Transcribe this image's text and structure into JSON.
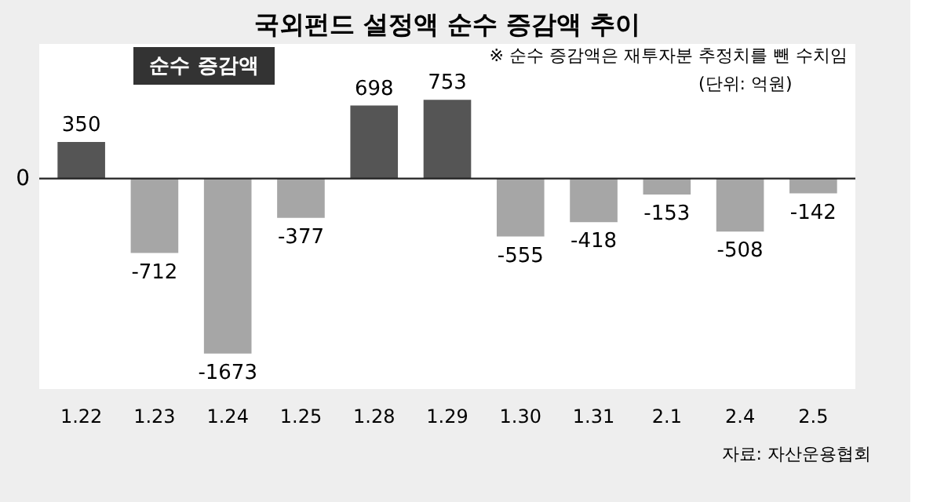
{
  "chart_data": {
    "type": "bar",
    "title": "국외펀드 설정액 순수 증감액 추이",
    "categories": [
      "1.22",
      "1.23",
      "1.24",
      "1.25",
      "1.28",
      "1.29",
      "1.30",
      "1.31",
      "2.1",
      "2.4",
      "2.5"
    ],
    "values": [
      350,
      -712,
      -1673,
      -377,
      698,
      753,
      -555,
      -418,
      -153,
      -508,
      -142
    ],
    "colors": [
      "#555555",
      "#a6a6a6",
      "#a6a6a6",
      "#a6a6a6",
      "#555555",
      "#555555",
      "#a6a6a6",
      "#a6a6a6",
      "#a6a6a6",
      "#a6a6a6",
      "#a6a6a6"
    ],
    "data_labels": true,
    "annotations": [
      "순수 증감액",
      "0",
      "※ 순수 증감액은 재투자분 추정치를 뺀 수치임",
      "(단위: 억원)",
      "자료: 자산운용협회"
    ]
  }
}
